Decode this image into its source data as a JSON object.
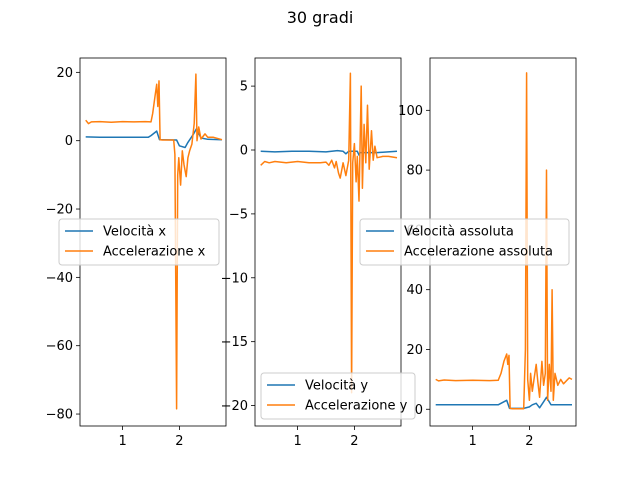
{
  "figure": {
    "suptitle": "30 gradi"
  },
  "colors": {
    "blue": "#1f77b4",
    "orange": "#ff7f0e"
  },
  "chart_data": [
    {
      "type": "line",
      "xlim": [
        0.25,
        2.82
      ],
      "ylim": [
        -83.5,
        24.2
      ],
      "xticks": [
        1,
        2
      ],
      "yticks": [
        20,
        0,
        -20,
        -40,
        -60,
        -80
      ],
      "legend_position": "center-left",
      "series": [
        {
          "name": "Velocità x",
          "color": "#1f77b4",
          "points": [
            [
              0.35,
              1.1
            ],
            [
              0.6,
              1.0
            ],
            [
              0.9,
              1.0
            ],
            [
              1.2,
              1.0
            ],
            [
              1.45,
              1.0
            ],
            [
              1.5,
              1.5
            ],
            [
              1.6,
              2.8
            ],
            [
              1.65,
              0.3
            ],
            [
              1.7,
              0.3
            ],
            [
              1.95,
              0.2
            ],
            [
              2.0,
              -1.5
            ],
            [
              2.1,
              -2.0
            ],
            [
              2.15,
              -0.5
            ],
            [
              2.25,
              2.0
            ],
            [
              2.3,
              3.5
            ],
            [
              2.38,
              0.8
            ],
            [
              2.5,
              0.4
            ],
            [
              2.75,
              0.3
            ]
          ]
        },
        {
          "name": "Accelerazione x",
          "color": "#ff7f0e",
          "points": [
            [
              0.35,
              6.0
            ],
            [
              0.4,
              5.0
            ],
            [
              0.45,
              5.5
            ],
            [
              0.6,
              5.6
            ],
            [
              0.8,
              5.4
            ],
            [
              1.0,
              5.6
            ],
            [
              1.2,
              5.5
            ],
            [
              1.4,
              5.6
            ],
            [
              1.5,
              5.5
            ],
            [
              1.53,
              8.0
            ],
            [
              1.57,
              13.0
            ],
            [
              1.6,
              16.5
            ],
            [
              1.62,
              10.0
            ],
            [
              1.64,
              17.5
            ],
            [
              1.66,
              0.3
            ],
            [
              1.7,
              0.2
            ],
            [
              1.9,
              0.2
            ],
            [
              1.92,
              -4.0
            ],
            [
              1.95,
              -78.5
            ],
            [
              1.97,
              -10.0
            ],
            [
              1.99,
              -5.0
            ],
            [
              2.02,
              -13.0
            ],
            [
              2.05,
              -3.0
            ],
            [
              2.08,
              -7.0
            ],
            [
              2.12,
              -10.5
            ],
            [
              2.15,
              -5.0
            ],
            [
              2.18,
              -3.0
            ],
            [
              2.22,
              -1.0
            ],
            [
              2.26,
              5.0
            ],
            [
              2.29,
              19.5
            ],
            [
              2.31,
              0.0
            ],
            [
              2.34,
              4.0
            ],
            [
              2.38,
              0.5
            ],
            [
              2.45,
              2.0
            ],
            [
              2.5,
              1.0
            ],
            [
              2.6,
              1.0
            ],
            [
              2.75,
              0.3
            ]
          ]
        }
      ]
    },
    {
      "type": "line",
      "xlim": [
        0.25,
        2.82
      ],
      "ylim": [
        -21.6,
        7.2
      ],
      "xticks": [
        1,
        2
      ],
      "yticks": [
        5,
        0,
        -5,
        -10,
        -15,
        -20
      ],
      "legend_position": "lower-center",
      "series": [
        {
          "name": "Velocità y",
          "color": "#1f77b4",
          "points": [
            [
              0.35,
              -0.1
            ],
            [
              0.6,
              -0.15
            ],
            [
              0.9,
              -0.1
            ],
            [
              1.2,
              -0.1
            ],
            [
              1.5,
              -0.15
            ],
            [
              1.6,
              -0.1
            ],
            [
              1.7,
              -0.05
            ],
            [
              1.8,
              -0.1
            ],
            [
              1.85,
              -0.3
            ],
            [
              1.9,
              -0.1
            ],
            [
              1.95,
              -0.1
            ],
            [
              2.05,
              -0.1
            ],
            [
              2.08,
              -0.4
            ],
            [
              2.1,
              -0.2
            ],
            [
              2.25,
              -0.2
            ],
            [
              2.4,
              -0.2
            ],
            [
              2.75,
              -0.1
            ]
          ]
        },
        {
          "name": "Accelerazione y",
          "color": "#ff7f0e",
          "points": [
            [
              0.35,
              -1.2
            ],
            [
              0.42,
              -0.9
            ],
            [
              0.5,
              -1.0
            ],
            [
              0.6,
              -0.9
            ],
            [
              0.8,
              -1.0
            ],
            [
              1.0,
              -0.9
            ],
            [
              1.2,
              -1.0
            ],
            [
              1.4,
              -1.0
            ],
            [
              1.5,
              -0.95
            ],
            [
              1.55,
              -1.2
            ],
            [
              1.6,
              -0.8
            ],
            [
              1.65,
              -1.4
            ],
            [
              1.68,
              -0.9
            ],
            [
              1.72,
              -1.8
            ],
            [
              1.75,
              -2.2
            ],
            [
              1.8,
              -1.0
            ],
            [
              1.85,
              -2.0
            ],
            [
              1.9,
              -0.8
            ],
            [
              1.93,
              6.0
            ],
            [
              1.95,
              -19.0
            ],
            [
              1.97,
              -1.0
            ],
            [
              2.0,
              0.5
            ],
            [
              2.03,
              -2.5
            ],
            [
              2.05,
              -0.5
            ],
            [
              2.08,
              -4.0
            ],
            [
              2.1,
              0.5
            ],
            [
              2.12,
              5.0
            ],
            [
              2.14,
              -3.0
            ],
            [
              2.17,
              2.0
            ],
            [
              2.2,
              -1.0
            ],
            [
              2.23,
              3.5
            ],
            [
              2.26,
              -1.5
            ],
            [
              2.3,
              1.5
            ],
            [
              2.33,
              -0.8
            ],
            [
              2.36,
              0.3
            ],
            [
              2.4,
              -0.6
            ],
            [
              2.5,
              -0.5
            ],
            [
              2.6,
              -0.5
            ],
            [
              2.75,
              -0.6
            ]
          ]
        }
      ]
    },
    {
      "type": "line",
      "xlim": [
        0.25,
        2.82
      ],
      "ylim": [
        -5.6,
        117.5
      ],
      "xticks": [
        1,
        2
      ],
      "yticks": [
        100,
        80,
        60,
        40,
        20,
        0
      ],
      "legend_position": "center-right",
      "series": [
        {
          "name": "Velocità assoluta",
          "color": "#1f77b4",
          "points": [
            [
              0.35,
              1.5
            ],
            [
              0.6,
              1.5
            ],
            [
              0.9,
              1.5
            ],
            [
              1.2,
              1.5
            ],
            [
              1.45,
              1.5
            ],
            [
              1.5,
              2.0
            ],
            [
              1.6,
              3.0
            ],
            [
              1.65,
              0.3
            ],
            [
              1.7,
              0.3
            ],
            [
              1.9,
              0.3
            ],
            [
              2.0,
              0.8
            ],
            [
              2.05,
              1.5
            ],
            [
              2.12,
              2.0
            ],
            [
              2.18,
              0.5
            ],
            [
              2.25,
              2.5
            ],
            [
              2.3,
              4.0
            ],
            [
              2.38,
              1.5
            ],
            [
              2.5,
              1.5
            ],
            [
              2.75,
              1.5
            ]
          ]
        },
        {
          "name": "Accelerazione assoluta",
          "color": "#ff7f0e",
          "points": [
            [
              0.35,
              10.0
            ],
            [
              0.4,
              9.5
            ],
            [
              0.5,
              9.8
            ],
            [
              0.7,
              9.6
            ],
            [
              1.0,
              9.7
            ],
            [
              1.3,
              9.6
            ],
            [
              1.45,
              9.7
            ],
            [
              1.5,
              12.0
            ],
            [
              1.55,
              16.0
            ],
            [
              1.6,
              18.5
            ],
            [
              1.62,
              15.0
            ],
            [
              1.64,
              18.0
            ],
            [
              1.66,
              0.3
            ],
            [
              1.7,
              0.2
            ],
            [
              1.9,
              0.2
            ],
            [
              1.93,
              20.0
            ],
            [
              1.95,
              112.5
            ],
            [
              1.97,
              10.0
            ],
            [
              2.0,
              3.0
            ],
            [
              2.02,
              12.0
            ],
            [
              2.05,
              6.0
            ],
            [
              2.08,
              10.0
            ],
            [
              2.12,
              15.0
            ],
            [
              2.15,
              9.0
            ],
            [
              2.18,
              4.0
            ],
            [
              2.22,
              16.0
            ],
            [
              2.25,
              8.0
            ],
            [
              2.28,
              12.0
            ],
            [
              2.3,
              80.0
            ],
            [
              2.32,
              3.0
            ],
            [
              2.35,
              15.0
            ],
            [
              2.38,
              6.0
            ],
            [
              2.4,
              40.0
            ],
            [
              2.42,
              3.0
            ],
            [
              2.45,
              12.0
            ],
            [
              2.5,
              8.0
            ],
            [
              2.55,
              10.0
            ],
            [
              2.6,
              8.5
            ],
            [
              2.7,
              10.5
            ],
            [
              2.75,
              10.0
            ]
          ]
        }
      ]
    }
  ]
}
